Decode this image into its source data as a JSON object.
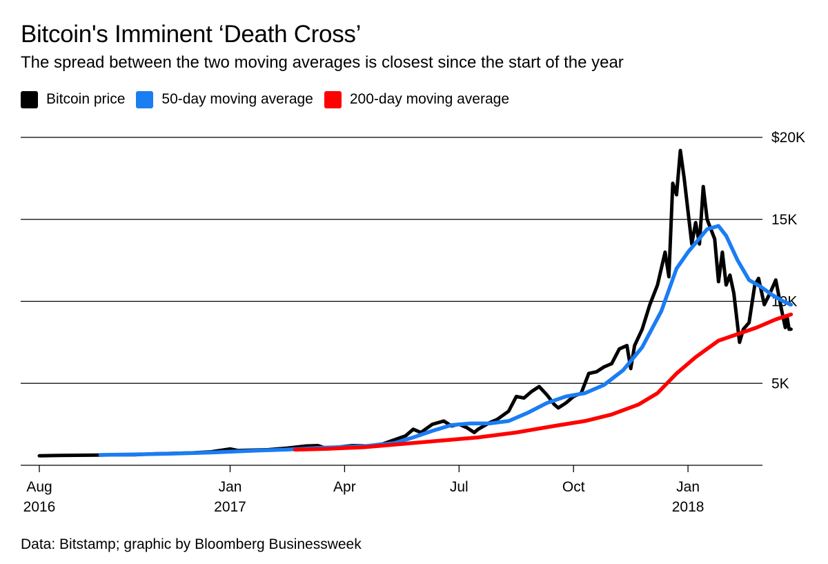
{
  "title": "Bitcoin's Imminent ‘Death Cross’",
  "subtitle": "The spread between the two moving averages is closest since the start of the year",
  "source": "Data: Bitstamp; graphic by Bloomberg Businessweek",
  "chart_data": {
    "type": "line",
    "title": "Bitcoin's Imminent ‘Death Cross’",
    "subtitle": "The spread between the two moving averages is closest since the start of the year",
    "x_unit": "months since Aug 1, 2016",
    "ylim": [
      0,
      20000
    ],
    "yticks": [
      {
        "value": 20000,
        "label": "$20K"
      },
      {
        "value": 15000,
        "label": "15K"
      },
      {
        "value": 10000,
        "label": "10K"
      },
      {
        "value": 5000,
        "label": "5K"
      }
    ],
    "xticks": [
      {
        "value": 0,
        "line1": "Aug",
        "line2": "2016"
      },
      {
        "value": 5,
        "line1": "Jan",
        "line2": "2017"
      },
      {
        "value": 8,
        "line1": "Apr",
        "line2": ""
      },
      {
        "value": 11,
        "line1": "Jul",
        "line2": ""
      },
      {
        "value": 14,
        "line1": "Oct",
        "line2": ""
      },
      {
        "value": 17,
        "line1": "Jan",
        "line2": "2018"
      }
    ],
    "grid": true,
    "series": [
      {
        "name": "Bitcoin price",
        "color": "#000000",
        "points": [
          [
            0,
            580
          ],
          [
            0.5,
            600
          ],
          [
            1,
            610
          ],
          [
            1.5,
            620
          ],
          [
            2,
            640
          ],
          [
            2.5,
            640
          ],
          [
            3,
            700
          ],
          [
            3.5,
            730
          ],
          [
            4,
            760
          ],
          [
            4.5,
            820
          ],
          [
            5,
            1000
          ],
          [
            5.2,
            900
          ],
          [
            5.5,
            920
          ],
          [
            6,
            950
          ],
          [
            6.5,
            1050
          ],
          [
            7,
            1180
          ],
          [
            7.3,
            1200
          ],
          [
            7.5,
            1050
          ],
          [
            7.8,
            1100
          ],
          [
            8.2,
            1200
          ],
          [
            8.6,
            1180
          ],
          [
            9,
            1300
          ],
          [
            9.3,
            1550
          ],
          [
            9.6,
            1800
          ],
          [
            9.8,
            2200
          ],
          [
            10,
            2000
          ],
          [
            10.3,
            2500
          ],
          [
            10.6,
            2700
          ],
          [
            10.8,
            2400
          ],
          [
            11,
            2500
          ],
          [
            11.2,
            2300
          ],
          [
            11.4,
            2000
          ],
          [
            11.5,
            2200
          ],
          [
            11.8,
            2600
          ],
          [
            12,
            2800
          ],
          [
            12.3,
            3300
          ],
          [
            12.5,
            4200
          ],
          [
            12.7,
            4100
          ],
          [
            12.9,
            4500
          ],
          [
            13.1,
            4800
          ],
          [
            13.3,
            4300
          ],
          [
            13.5,
            3700
          ],
          [
            13.6,
            3500
          ],
          [
            13.8,
            3800
          ],
          [
            14,
            4200
          ],
          [
            14.2,
            4400
          ],
          [
            14.4,
            5600
          ],
          [
            14.6,
            5700
          ],
          [
            14.8,
            6000
          ],
          [
            15,
            6200
          ],
          [
            15.2,
            7100
          ],
          [
            15.4,
            7300
          ],
          [
            15.5,
            5900
          ],
          [
            15.6,
            7300
          ],
          [
            15.8,
            8300
          ],
          [
            16,
            9800
          ],
          [
            16.2,
            11000
          ],
          [
            16.4,
            13000
          ],
          [
            16.5,
            11500
          ],
          [
            16.6,
            17200
          ],
          [
            16.7,
            16500
          ],
          [
            16.8,
            19200
          ],
          [
            16.9,
            17500
          ],
          [
            17,
            15500
          ],
          [
            17.1,
            13500
          ],
          [
            17.2,
            14800
          ],
          [
            17.3,
            13500
          ],
          [
            17.4,
            17000
          ],
          [
            17.5,
            15000
          ],
          [
            17.7,
            13800
          ],
          [
            17.8,
            11200
          ],
          [
            17.9,
            13000
          ],
          [
            18,
            11000
          ],
          [
            18.1,
            11600
          ],
          [
            18.2,
            10500
          ],
          [
            18.35,
            7500
          ],
          [
            18.45,
            8300
          ],
          [
            18.6,
            8700
          ],
          [
            18.75,
            11000
          ],
          [
            18.85,
            11400
          ],
          [
            19,
            9800
          ],
          [
            19.15,
            10500
          ],
          [
            19.3,
            11300
          ],
          [
            19.45,
            9500
          ],
          [
            19.55,
            8400
          ],
          [
            19.6,
            9000
          ],
          [
            19.65,
            8300
          ],
          [
            19.7,
            8300
          ]
        ]
      },
      {
        "name": "50-day moving average",
        "color": "#1a7df2",
        "points": [
          [
            1.6,
            630
          ],
          [
            2.5,
            660
          ],
          [
            3.5,
            710
          ],
          [
            4.5,
            780
          ],
          [
            5.5,
            880
          ],
          [
            6.5,
            960
          ],
          [
            7.5,
            1080
          ],
          [
            8.5,
            1160
          ],
          [
            9.3,
            1350
          ],
          [
            9.8,
            1700
          ],
          [
            10.3,
            2100
          ],
          [
            10.8,
            2450
          ],
          [
            11.3,
            2550
          ],
          [
            11.8,
            2550
          ],
          [
            12.3,
            2700
          ],
          [
            12.8,
            3200
          ],
          [
            13.3,
            3800
          ],
          [
            13.8,
            4200
          ],
          [
            14.3,
            4400
          ],
          [
            14.8,
            4900
          ],
          [
            15.3,
            5800
          ],
          [
            15.8,
            7200
          ],
          [
            16.3,
            9400
          ],
          [
            16.7,
            12000
          ],
          [
            17,
            13000
          ],
          [
            17.5,
            14400
          ],
          [
            17.8,
            14600
          ],
          [
            18,
            14000
          ],
          [
            18.3,
            12500
          ],
          [
            18.6,
            11300
          ],
          [
            18.9,
            10900
          ],
          [
            19.2,
            10400
          ],
          [
            19.5,
            10000
          ],
          [
            19.7,
            9800
          ]
        ]
      },
      {
        "name": "200-day moving average",
        "color": "#ff0000",
        "points": [
          [
            6.7,
            950
          ],
          [
            7.5,
            1000
          ],
          [
            8.5,
            1100
          ],
          [
            9.5,
            1300
          ],
          [
            10.5,
            1500
          ],
          [
            11.5,
            1700
          ],
          [
            12.5,
            2000
          ],
          [
            13.5,
            2400
          ],
          [
            14.3,
            2700
          ],
          [
            15,
            3100
          ],
          [
            15.7,
            3700
          ],
          [
            16.2,
            4400
          ],
          [
            16.7,
            5600
          ],
          [
            17.2,
            6600
          ],
          [
            17.8,
            7600
          ],
          [
            18.3,
            8000
          ],
          [
            18.8,
            8400
          ],
          [
            19.3,
            8900
          ],
          [
            19.7,
            9200
          ]
        ]
      }
    ]
  }
}
